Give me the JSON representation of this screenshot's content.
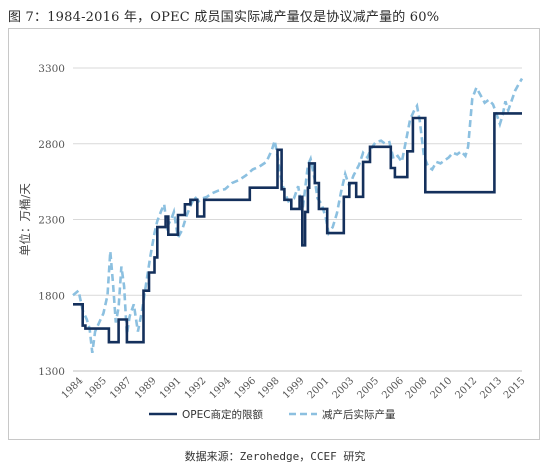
{
  "figure": {
    "title": "图 7：1984-2016 年，OPEC 成员国实际减产量仅是协议减产量的 60%",
    "source": "数据来源：Zerohedge，CCEF 研究"
  },
  "chart_data": {
    "type": "line",
    "title": "",
    "ylabel": "单位：万桶/天",
    "xlabel": "",
    "ylim": [
      1300,
      3300
    ],
    "yticks": [
      1300,
      1800,
      2300,
      2800,
      3300
    ],
    "xlim": [
      1984.0,
      2016.5
    ],
    "xtick_labels": [
      "1984",
      "1985",
      "1987",
      "1989",
      "1991",
      "1992",
      "1994",
      "1996",
      "1998",
      "1999",
      "2001",
      "2003",
      "2005",
      "2006",
      "2008",
      "2010",
      "2012",
      "2013",
      "2015"
    ],
    "xtick_positions": [
      1984.0,
      1985.7,
      1987.5,
      1989.3,
      1991.1,
      1992.9,
      1994.7,
      1996.5,
      1998.2,
      2000.0,
      2001.8,
      2003.6,
      2005.4,
      2007.2,
      2008.9,
      2010.7,
      2012.5,
      2014.3,
      2016.0
    ],
    "grid": "horizontal",
    "legend_position": "bottom",
    "colors": {
      "quota": "#14305c",
      "actual": "#8cc0e0"
    },
    "series": [
      {
        "name": "OPEC商定的限额",
        "style": "solid",
        "points": [
          [
            1984.0,
            1740
          ],
          [
            1984.7,
            1740
          ],
          [
            1984.7,
            1600
          ],
          [
            1984.9,
            1600
          ],
          [
            1984.9,
            1580
          ],
          [
            1986.6,
            1580
          ],
          [
            1986.6,
            1490
          ],
          [
            1987.3,
            1490
          ],
          [
            1987.3,
            1640
          ],
          [
            1987.9,
            1640
          ],
          [
            1987.9,
            1490
          ],
          [
            1989.1,
            1490
          ],
          [
            1989.1,
            1830
          ],
          [
            1989.5,
            1830
          ],
          [
            1989.5,
            1950
          ],
          [
            1989.9,
            1950
          ],
          [
            1989.9,
            2050
          ],
          [
            1990.1,
            2050
          ],
          [
            1990.1,
            2250
          ],
          [
            1990.7,
            2250
          ],
          [
            1990.7,
            2320
          ],
          [
            1990.9,
            2320
          ],
          [
            1990.9,
            2200
          ],
          [
            1991.6,
            2200
          ],
          [
            1991.6,
            2330
          ],
          [
            1992.1,
            2330
          ],
          [
            1992.1,
            2400
          ],
          [
            1992.5,
            2400
          ],
          [
            1992.5,
            2430
          ],
          [
            1993.0,
            2430
          ],
          [
            1993.0,
            2320
          ],
          [
            1993.5,
            2320
          ],
          [
            1993.5,
            2430
          ],
          [
            1996.8,
            2430
          ],
          [
            1996.8,
            2510
          ],
          [
            1998.8,
            2510
          ],
          [
            1998.8,
            2760
          ],
          [
            1999.1,
            2760
          ],
          [
            1999.1,
            2500
          ],
          [
            1999.3,
            2500
          ],
          [
            1999.3,
            2430
          ],
          [
            1999.8,
            2430
          ],
          [
            1999.8,
            2370
          ],
          [
            2000.4,
            2370
          ],
          [
            2000.4,
            2450
          ],
          [
            2000.6,
            2450
          ],
          [
            2000.6,
            2130
          ],
          [
            2000.8,
            2130
          ],
          [
            2000.8,
            2350
          ],
          [
            2001.0,
            2350
          ],
          [
            2001.0,
            2510
          ],
          [
            2001.1,
            2510
          ],
          [
            2001.1,
            2670
          ],
          [
            2001.5,
            2670
          ],
          [
            2001.5,
            2540
          ],
          [
            2001.8,
            2540
          ],
          [
            2001.8,
            2370
          ],
          [
            2002.4,
            2370
          ],
          [
            2002.4,
            2210
          ],
          [
            2003.6,
            2210
          ],
          [
            2003.6,
            2450
          ],
          [
            2004.0,
            2450
          ],
          [
            2004.0,
            2540
          ],
          [
            2004.5,
            2540
          ],
          [
            2004.5,
            2450
          ],
          [
            2005.0,
            2450
          ],
          [
            2005.0,
            2680
          ],
          [
            2005.5,
            2680
          ],
          [
            2005.5,
            2780
          ],
          [
            2007.0,
            2780
          ],
          [
            2007.0,
            2640
          ],
          [
            2007.3,
            2640
          ],
          [
            2007.3,
            2580
          ],
          [
            2008.2,
            2580
          ],
          [
            2008.2,
            2750
          ],
          [
            2008.6,
            2750
          ],
          [
            2008.6,
            2970
          ],
          [
            2009.5,
            2970
          ],
          [
            2009.5,
            2480
          ],
          [
            2014.5,
            2480
          ],
          [
            2014.5,
            3000
          ],
          [
            2016.5,
            3000
          ]
        ]
      },
      {
        "name": "减产后实际产量",
        "style": "dashed",
        "points": [
          [
            1984.0,
            1800
          ],
          [
            1984.4,
            1830
          ],
          [
            1984.7,
            1700
          ],
          [
            1985.0,
            1640
          ],
          [
            1985.2,
            1580
          ],
          [
            1985.4,
            1420
          ],
          [
            1985.6,
            1560
          ],
          [
            1985.9,
            1620
          ],
          [
            1986.2,
            1680
          ],
          [
            1986.5,
            1800
          ],
          [
            1986.7,
            2090
          ],
          [
            1986.9,
            1870
          ],
          [
            1987.1,
            1620
          ],
          [
            1987.3,
            1720
          ],
          [
            1987.5,
            1990
          ],
          [
            1987.7,
            1860
          ],
          [
            1987.9,
            1540
          ],
          [
            1988.1,
            1660
          ],
          [
            1988.4,
            1740
          ],
          [
            1988.7,
            1560
          ],
          [
            1989.0,
            1700
          ],
          [
            1989.3,
            1880
          ],
          [
            1989.6,
            2060
          ],
          [
            1989.9,
            2210
          ],
          [
            1990.1,
            2290
          ],
          [
            1990.4,
            2360
          ],
          [
            1990.6,
            2400
          ],
          [
            1990.8,
            2250
          ],
          [
            1991.1,
            2300
          ],
          [
            1991.3,
            2350
          ],
          [
            1991.6,
            2180
          ],
          [
            1991.9,
            2230
          ],
          [
            1992.2,
            2320
          ],
          [
            1992.5,
            2390
          ],
          [
            1992.8,
            2450
          ],
          [
            1993.1,
            2420
          ],
          [
            1993.4,
            2440
          ],
          [
            1993.7,
            2450
          ],
          [
            1994.0,
            2470
          ],
          [
            1994.5,
            2490
          ],
          [
            1995.0,
            2500
          ],
          [
            1995.5,
            2540
          ],
          [
            1996.0,
            2560
          ],
          [
            1996.5,
            2590
          ],
          [
            1997.0,
            2630
          ],
          [
            1997.5,
            2650
          ],
          [
            1998.0,
            2680
          ],
          [
            1998.4,
            2760
          ],
          [
            1998.6,
            2820
          ],
          [
            1998.8,
            2720
          ],
          [
            1999.0,
            2600
          ],
          [
            1999.3,
            2480
          ],
          [
            1999.6,
            2420
          ],
          [
            2000.0,
            2440
          ],
          [
            2000.3,
            2520
          ],
          [
            2000.6,
            2350
          ],
          [
            2000.8,
            2500
          ],
          [
            2001.0,
            2660
          ],
          [
            2001.2,
            2700
          ],
          [
            2001.5,
            2560
          ],
          [
            2001.7,
            2440
          ],
          [
            2002.0,
            2400
          ],
          [
            2002.3,
            2310
          ],
          [
            2002.5,
            2210
          ],
          [
            2002.8,
            2250
          ],
          [
            2003.1,
            2340
          ],
          [
            2003.4,
            2480
          ],
          [
            2003.7,
            2600
          ],
          [
            2004.0,
            2520
          ],
          [
            2004.3,
            2590
          ],
          [
            2004.7,
            2660
          ],
          [
            2005.0,
            2740
          ],
          [
            2005.3,
            2710
          ],
          [
            2005.6,
            2770
          ],
          [
            2005.9,
            2810
          ],
          [
            2006.3,
            2820
          ],
          [
            2006.6,
            2800
          ],
          [
            2006.9,
            2810
          ],
          [
            2007.2,
            2700
          ],
          [
            2007.5,
            2720
          ],
          [
            2007.8,
            2680
          ],
          [
            2008.1,
            2820
          ],
          [
            2008.4,
            2960
          ],
          [
            2008.7,
            3020
          ],
          [
            2008.9,
            3050
          ],
          [
            2009.1,
            2950
          ],
          [
            2009.4,
            2720
          ],
          [
            2009.7,
            2650
          ],
          [
            2010.0,
            2630
          ],
          [
            2010.3,
            2680
          ],
          [
            2010.6,
            2670
          ],
          [
            2010.9,
            2690
          ],
          [
            2011.2,
            2710
          ],
          [
            2011.5,
            2740
          ],
          [
            2011.8,
            2730
          ],
          [
            2012.1,
            2750
          ],
          [
            2012.4,
            2720
          ],
          [
            2012.6,
            2780
          ],
          [
            2012.9,
            3100
          ],
          [
            2013.2,
            3170
          ],
          [
            2013.5,
            3120
          ],
          [
            2013.8,
            3070
          ],
          [
            2014.1,
            3090
          ],
          [
            2014.4,
            3060
          ],
          [
            2014.6,
            3010
          ],
          [
            2014.9,
            2930
          ],
          [
            2015.1,
            2990
          ],
          [
            2015.3,
            3080
          ],
          [
            2015.5,
            3020
          ],
          [
            2015.7,
            3070
          ],
          [
            2016.0,
            3150
          ],
          [
            2016.3,
            3200
          ],
          [
            2016.5,
            3230
          ]
        ]
      }
    ]
  }
}
